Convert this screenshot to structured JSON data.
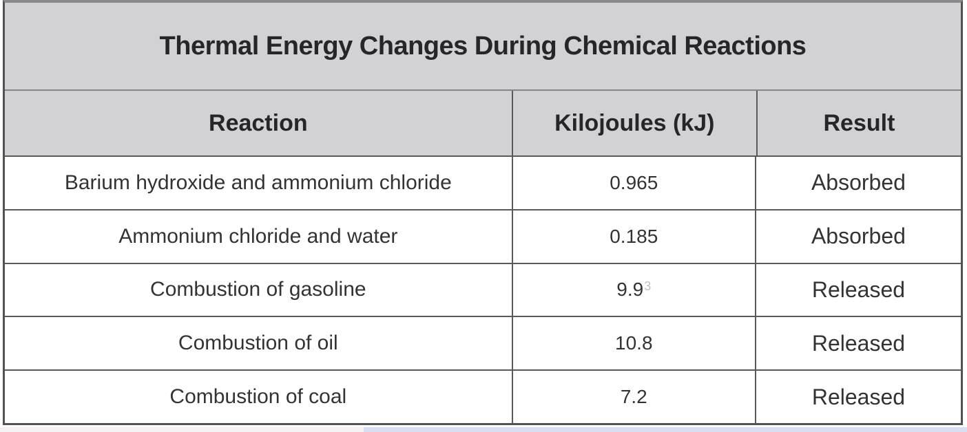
{
  "table": {
    "title": "Thermal Energy Changes During Chemical Reactions",
    "columns": {
      "reaction": "Reaction",
      "kilojoules": "Kilojoules (kJ)",
      "result": "Result"
    },
    "rows": [
      {
        "reaction": "Barium hydroxide and ammonium chloride",
        "kilojoules": "0.965",
        "result": "Absorbed"
      },
      {
        "reaction": "Ammonium chloride and water",
        "kilojoules": "0.185",
        "result": "Absorbed"
      },
      {
        "reaction": "Combustion of gasoline",
        "kilojoules": "9.9",
        "kilojoules_faint": "3",
        "result": "Released"
      },
      {
        "reaction": "Combustion of oil",
        "kilojoules": "10.8",
        "result": "Released"
      },
      {
        "reaction": "Combustion of coal",
        "kilojoules": "7.2",
        "result": "Released"
      }
    ],
    "colors": {
      "header_bg": "#d2d2d4",
      "row_bg": "#ffffff",
      "border_dark": "#525254",
      "border_mid": "#59595b",
      "text": "#2a2a2c",
      "bottom_strip_left": "#f6f2f3",
      "bottom_strip_right": "#dadef1"
    }
  },
  "chart_data": {
    "type": "table",
    "title": "Thermal Energy Changes During Chemical Reactions",
    "columns": [
      "Reaction",
      "Kilojoules (kJ)",
      "Result"
    ],
    "rows": [
      [
        "Barium hydroxide and ammonium chloride",
        0.965,
        "Absorbed"
      ],
      [
        "Ammonium chloride and water",
        0.185,
        "Absorbed"
      ],
      [
        "Combustion of gasoline",
        9.9,
        "Released"
      ],
      [
        "Combustion of oil",
        10.8,
        "Released"
      ],
      [
        "Combustion of coal",
        7.2,
        "Released"
      ]
    ]
  }
}
